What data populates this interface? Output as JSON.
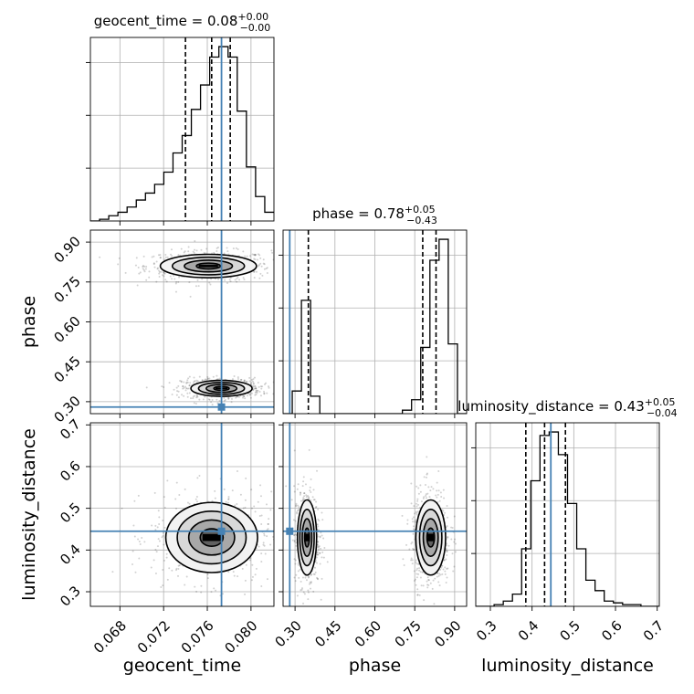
{
  "chart_data": {
    "type": "corner",
    "parameters": [
      "geocent_time",
      "phase",
      "luminosity_distance"
    ],
    "truths": {
      "geocent_time": 0.0773,
      "phase": 0.28,
      "luminosity_distance": 0.445
    },
    "truth_color": "#4682b4",
    "grid": true,
    "titles": [
      {
        "param": "geocent_time",
        "text": "geocent_time = 0.08",
        "sup": "+0.00",
        "sub": "−0.00"
      },
      {
        "param": "phase",
        "text": "phase = 0.78",
        "sup": "+0.05",
        "sub": "−0.43"
      },
      {
        "param": "luminosity_distance",
        "text": "luminosity_distance = 0.43",
        "sup": "+0.05",
        "sub": "−0.04"
      }
    ],
    "axis_labels": {
      "geocent_time": "geocent_time",
      "phase": "phase",
      "luminosity_distance": "luminosity_distance"
    },
    "ranges": {
      "geocent_time": [
        0.0653,
        0.0821
      ],
      "phase": [
        0.255,
        0.945
      ],
      "luminosity_distance": [
        0.265,
        0.705
      ]
    },
    "ticks": {
      "geocent_time": {
        "values": [
          0.068,
          0.072,
          0.076,
          0.08
        ],
        "labels": [
          "0.068",
          "0.072",
          "0.076",
          "0.080"
        ]
      },
      "phase": {
        "values": [
          0.3,
          0.45,
          0.6,
          0.75,
          0.9
        ],
        "labels": [
          "0.30",
          "0.45",
          "0.60",
          "0.75",
          "0.90"
        ]
      },
      "luminosity_distance": {
        "values": [
          0.3,
          0.4,
          0.5,
          0.6,
          0.7
        ],
        "labels": [
          "0.3",
          "0.4",
          "0.5",
          "0.6",
          "0.7"
        ]
      }
    },
    "quantiles": {
      "geocent_time": [
        0.074,
        0.0764,
        0.0781
      ],
      "phase": [
        0.35,
        0.78,
        0.83
      ],
      "luminosity_distance": [
        0.385,
        0.43,
        0.48
      ]
    },
    "histograms": {
      "geocent_time": {
        "edges_start": 0.0653,
        "bin_width": 0.00084,
        "counts": [
          0,
          1,
          3,
          5,
          8,
          12,
          16,
          21,
          28,
          39,
          49,
          64,
          78,
          94,
          100,
          94,
          63,
          31,
          14,
          5
        ]
      },
      "phase": {
        "edges_start": 0.255,
        "bin_width": 0.0345,
        "counts": [
          0,
          13,
          65,
          10,
          0,
          0,
          0,
          0,
          0,
          0,
          0,
          0,
          0,
          2,
          8,
          38,
          88,
          100,
          40,
          0
        ]
      },
      "luminosity_distance": {
        "edges_start": 0.265,
        "bin_width": 0.022,
        "counts": [
          0,
          0,
          1,
          3,
          7,
          33,
          72,
          98,
          100,
          87,
          59,
          33,
          15,
          9,
          3,
          2,
          1,
          1,
          0,
          0
        ]
      }
    },
    "clusters": [
      {
        "pair": [
          "geocent_time",
          "phase"
        ],
        "center": [
          0.0761,
          0.81
        ],
        "sigma": [
          0.0022,
          0.022
        ]
      },
      {
        "pair": [
          "geocent_time",
          "phase"
        ],
        "center": [
          0.0773,
          0.35
        ],
        "sigma": [
          0.0014,
          0.015
        ]
      },
      {
        "pair": [
          "geocent_time",
          "luminosity_distance"
        ],
        "center": [
          0.0764,
          0.43
        ],
        "sigma": [
          0.0021,
          0.042
        ]
      },
      {
        "pair": [
          "phase",
          "luminosity_distance"
        ],
        "center": [
          0.345,
          0.43
        ],
        "sigma": [
          0.018,
          0.045
        ]
      },
      {
        "pair": [
          "phase",
          "luminosity_distance"
        ],
        "center": [
          0.81,
          0.43
        ],
        "sigma": [
          0.028,
          0.045
        ]
      }
    ]
  }
}
